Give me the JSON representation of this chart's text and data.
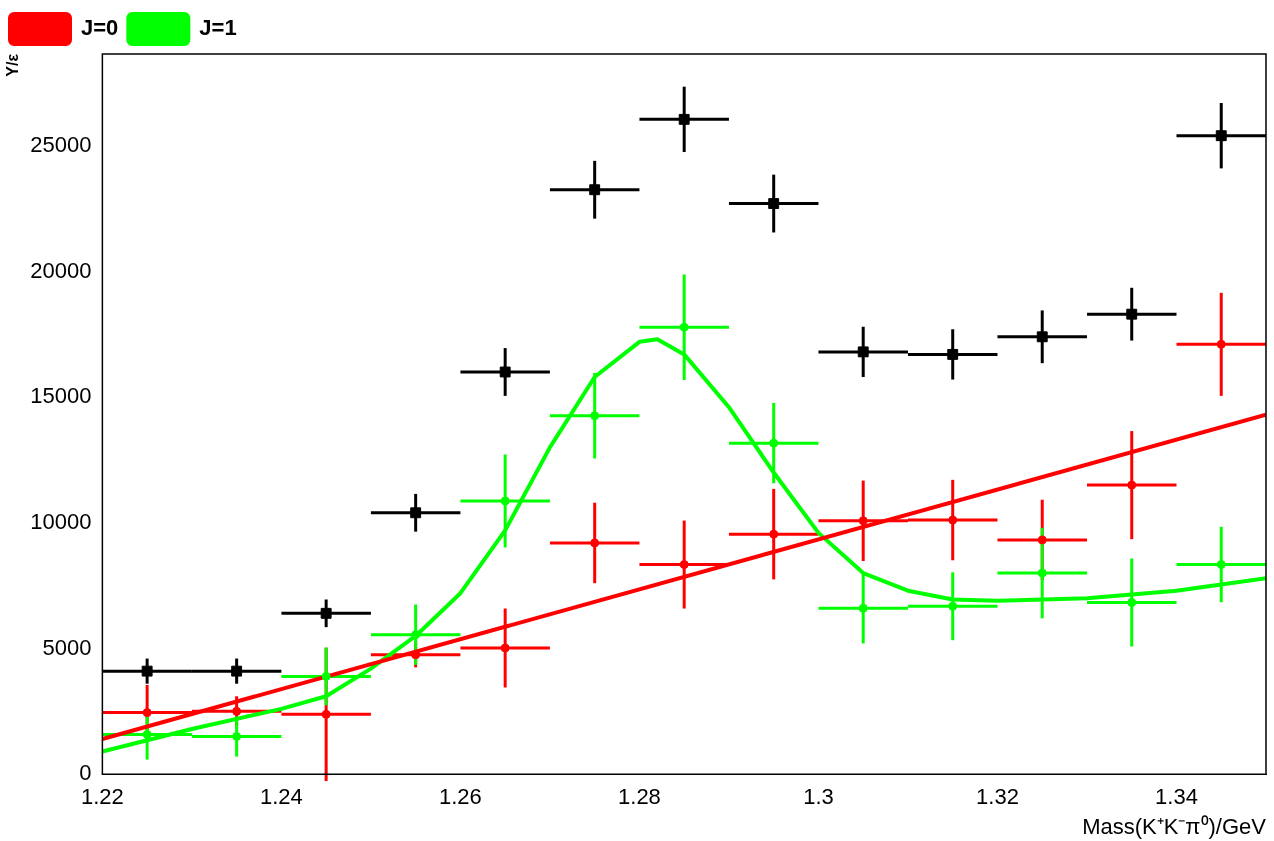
{
  "chart_data": {
    "type": "scatter",
    "xlabel": "Mass(K⁺K⁻π⁰)/GeV",
    "ylabel": "Y/ε",
    "xlim": [
      1.22,
      1.35
    ],
    "xticks": [
      1.22,
      1.24,
      1.26,
      1.28,
      1.3,
      1.32,
      1.34
    ],
    "ylim": [
      0,
      28650
    ],
    "yticks": [
      0,
      5000,
      10000,
      15000,
      20000,
      25000
    ],
    "legend": "top left",
    "grid": false,
    "series": [
      {
        "color": "#ff0000",
        "marker": "circle",
        "x": [
          1.225,
          1.235,
          1.245,
          1.255,
          1.265,
          1.275,
          1.285,
          1.295,
          1.305,
          1.315,
          1.325,
          1.335,
          1.345
        ],
        "values": [
          2450,
          2500,
          2380,
          4750,
          5020,
          9200,
          8340,
          9550,
          10080,
          10110,
          9320,
          11500,
          17100
        ],
        "errors": [
          1100,
          600,
          2650,
          500,
          1570,
          1600,
          1750,
          1800,
          1600,
          1600,
          1600,
          2150,
          2050
        ],
        "xerrors": [
          0.005,
          0.005,
          0.005,
          0.005,
          0.005,
          0.005,
          0.005,
          0.005,
          0.005,
          0.005,
          0.005,
          0.005,
          0.005
        ]
      },
      {
        "color": "#00ff00",
        "marker": "circle",
        "x": [
          1.225,
          1.235,
          1.245,
          1.255,
          1.265,
          1.275,
          1.285,
          1.295,
          1.305,
          1.315,
          1.325,
          1.335,
          1.345
        ],
        "values": [
          1580,
          1500,
          3890,
          5550,
          10870,
          14260,
          17780,
          13170,
          6600,
          6680,
          8000,
          6830,
          8340
        ],
        "errors": [
          1000,
          800,
          1150,
          1200,
          1850,
          1700,
          2100,
          1600,
          1400,
          1350,
          1800,
          1750,
          1500
        ],
        "xerrors": [
          0.005,
          0.005,
          0.005,
          0.005,
          0.005,
          0.005,
          0.005,
          0.005,
          0.005,
          0.005,
          0.005,
          0.005,
          0.005
        ]
      },
      {
        "type": "line",
        "name": "J=0",
        "color": "#ff0000",
        "x": [
          1.22,
          1.35
        ],
        "values": [
          1400,
          14300
        ]
      },
      {
        "type": "line",
        "name": "J=1",
        "color": "#00ff00",
        "x": [
          1.22,
          1.23,
          1.24,
          1.245,
          1.25,
          1.255,
          1.26,
          1.265,
          1.27,
          1.275,
          1.28,
          1.282,
          1.285,
          1.29,
          1.295,
          1.3,
          1.305,
          1.31,
          1.315,
          1.32,
          1.33,
          1.34,
          1.35
        ],
        "values": [
          900,
          1800,
          2600,
          3100,
          4200,
          5500,
          7200,
          9700,
          13000,
          15800,
          17200,
          17300,
          16700,
          14600,
          12000,
          9600,
          8000,
          7300,
          6950,
          6900,
          7000,
          7300,
          7800
        ]
      },
      {
        "color": "#000000",
        "marker": "square",
        "x": [
          1.225,
          1.235,
          1.245,
          1.255,
          1.265,
          1.275,
          1.285,
          1.295,
          1.305,
          1.315,
          1.325,
          1.335,
          1.345
        ],
        "values": [
          4100,
          4100,
          6400,
          10400,
          16000,
          23250,
          26050,
          22700,
          16800,
          16700,
          17400,
          18300,
          25400
        ],
        "errors": [
          500,
          500,
          550,
          750,
          950,
          1150,
          1300,
          1150,
          1000,
          1000,
          1050,
          1050,
          1300
        ],
        "xerrors": [
          0.005,
          0.005,
          0.005,
          0.005,
          0.005,
          0.005,
          0.005,
          0.005,
          0.005,
          0.005,
          0.005,
          0.005,
          0.005
        ]
      }
    ]
  }
}
